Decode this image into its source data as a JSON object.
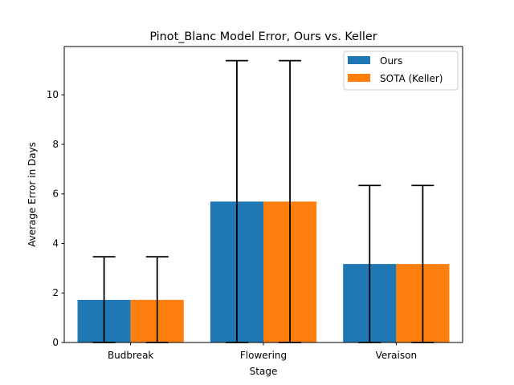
{
  "chart_data": {
    "type": "bar",
    "title": "Pinot_Blanc Model Error, Ours vs. Keller",
    "xlabel": "Stage",
    "ylabel": "Average Error in Days",
    "categories": [
      "Budbreak",
      "Flowering",
      "Veraison"
    ],
    "series": [
      {
        "name": "Ours",
        "values": [
          1.72,
          5.69,
          3.17
        ],
        "errors": [
          1.74,
          5.69,
          3.17
        ],
        "color": "#1f77b4"
      },
      {
        "name": "SOTA (Keller)",
        "values": [
          1.72,
          5.69,
          3.17
        ],
        "errors": [
          1.74,
          5.69,
          3.17
        ],
        "color": "#ff7f0e"
      }
    ],
    "ylim": [
      0,
      11.95
    ],
    "yticks": [
      0,
      2,
      4,
      6,
      8,
      10
    ],
    "grid": false,
    "legend_position": "top-right"
  }
}
